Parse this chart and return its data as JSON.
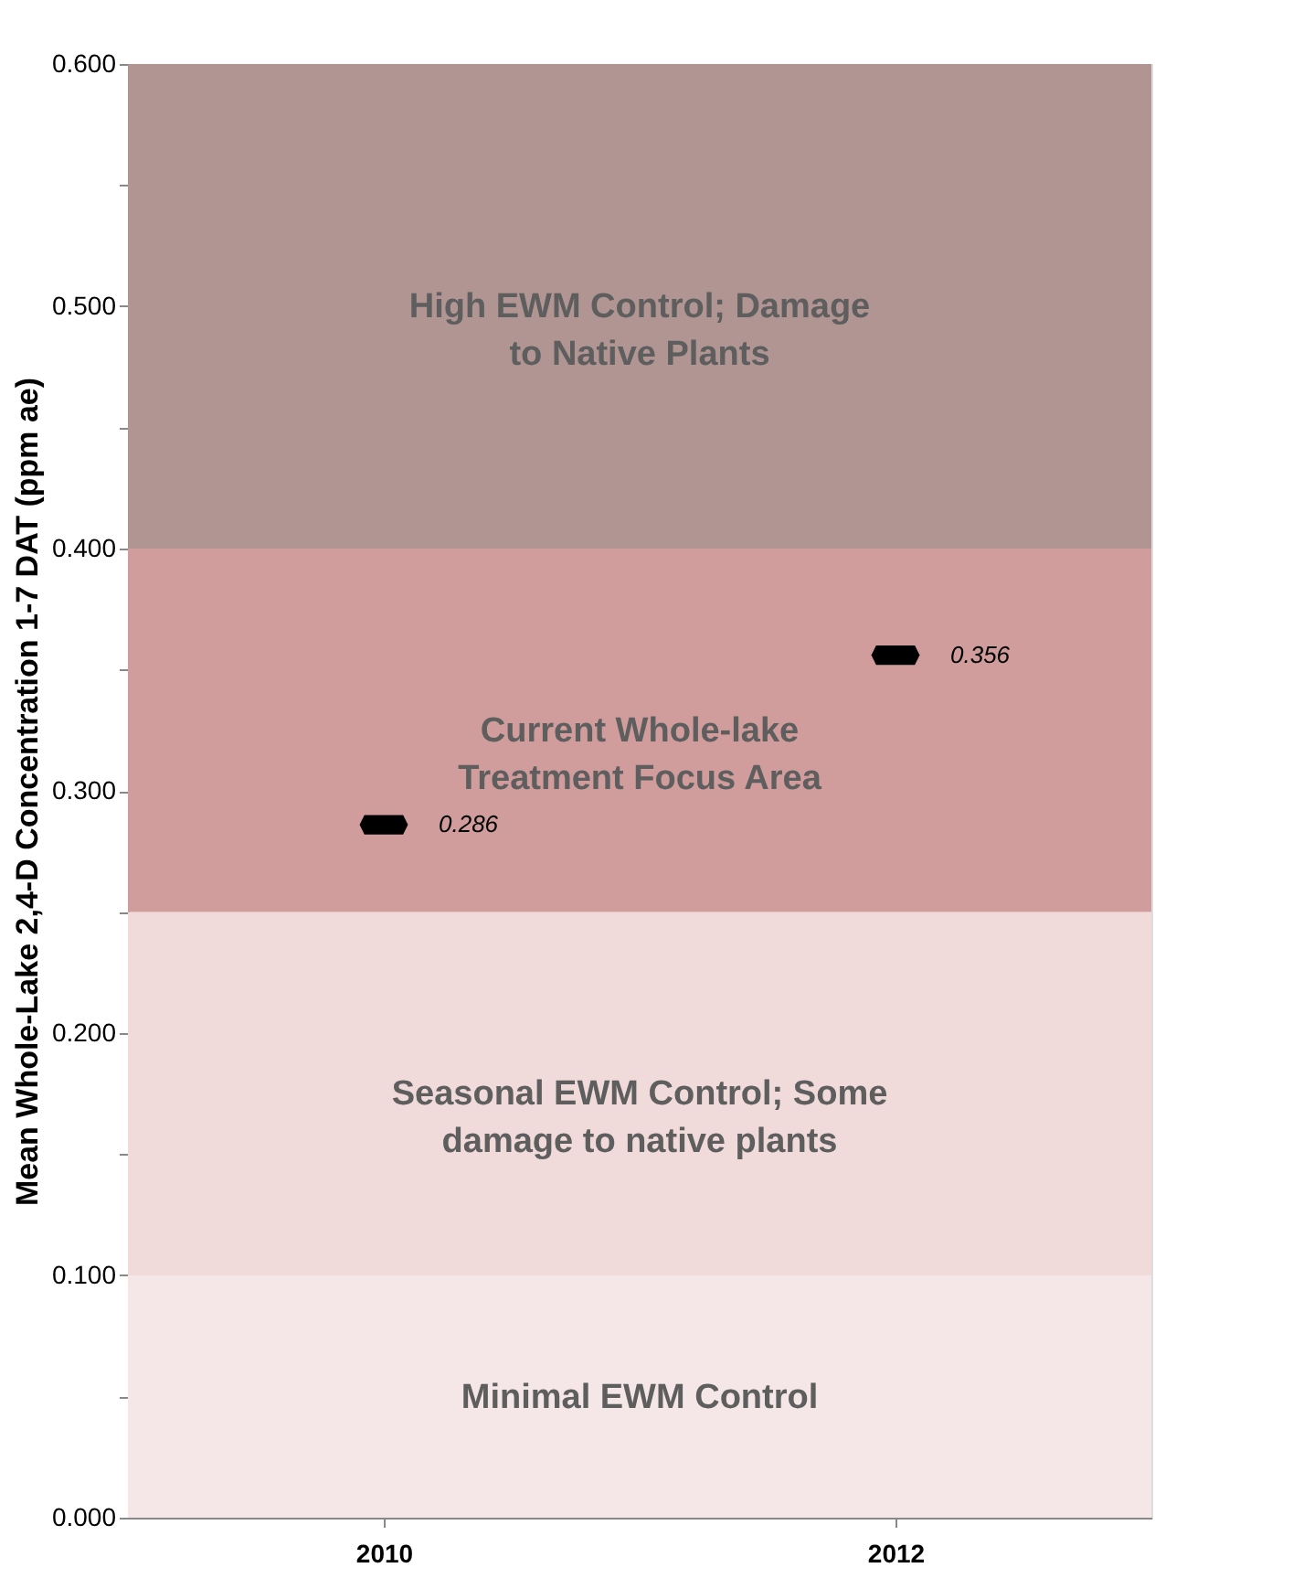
{
  "chart_data": {
    "type": "scatter",
    "ylabel": "Mean Whole-Lake 2,4-D Concentration 1-7 DAT (ppm ae)",
    "categories": [
      "2010",
      "2012"
    ],
    "values": [
      0.286,
      0.356
    ],
    "color": "#000000",
    "data_labels": true,
    "ylim": [
      0,
      0.6
    ],
    "yticks": [
      {
        "value": 0,
        "label": "0.000"
      },
      {
        "value": 0.05,
        "label": null
      },
      {
        "value": 0.1,
        "label": "0.100"
      },
      {
        "value": 0.15,
        "label": null
      },
      {
        "value": 0.2,
        "label": "0.200"
      },
      {
        "value": 0.25,
        "label": null
      },
      {
        "value": 0.3,
        "label": "0.300"
      },
      {
        "value": 0.35,
        "label": null
      },
      {
        "value": 0.4,
        "label": "0.400"
      },
      {
        "value": 0.45,
        "label": null
      },
      {
        "value": 0.5,
        "label": "0.500"
      },
      {
        "value": 0.55,
        "label": null
      },
      {
        "value": 0.6,
        "label": "0.600"
      }
    ],
    "grid": false,
    "bands": [
      {
        "axis": "y",
        "from": 0,
        "to": 0.1,
        "label": "Minimal EWM Control",
        "color": "#f5e7e7"
      },
      {
        "axis": "y",
        "from": 0.1,
        "to": 0.25,
        "label": "Seasonal EWM Control; Some damage to native plants",
        "color": "#f0dada"
      },
      {
        "axis": "y",
        "from": 0.25,
        "to": 0.4,
        "label": "Current Whole-lake Treatment Focus Area",
        "color": "#d09c9c"
      },
      {
        "axis": "y",
        "from": 0.4,
        "to": 0.6,
        "label": "High EWM Control; Damage to Native Plants",
        "color": "#b09593"
      }
    ]
  }
}
